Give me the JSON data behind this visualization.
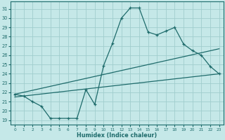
{
  "xlabel": "Humidex (Indice chaleur)",
  "bg_color": "#c5e8e8",
  "grid_color": "#a0cdcd",
  "line_color": "#1e6b6b",
  "xlim": [
    -0.5,
    23.5
  ],
  "ylim": [
    18.5,
    31.8
  ],
  "xticks": [
    0,
    1,
    2,
    3,
    4,
    5,
    6,
    7,
    8,
    9,
    10,
    11,
    12,
    13,
    14,
    15,
    16,
    17,
    18,
    19,
    20,
    21,
    22,
    23
  ],
  "yticks": [
    19,
    20,
    21,
    22,
    23,
    24,
    25,
    26,
    27,
    28,
    29,
    30,
    31
  ],
  "line1_x": [
    0,
    1,
    2,
    3,
    4,
    5,
    6,
    7,
    8,
    9,
    10,
    11,
    12,
    13,
    14,
    15,
    16,
    17,
    18,
    19,
    20,
    21,
    22,
    23
  ],
  "line1_y": [
    21.8,
    21.6,
    21.0,
    20.5,
    19.2,
    19.2,
    19.2,
    19.2,
    22.3,
    20.7,
    24.9,
    27.3,
    30.0,
    31.1,
    31.1,
    28.5,
    28.2,
    28.6,
    29.0,
    27.2,
    26.5,
    26.0,
    24.8,
    24.0
  ],
  "line2_x": [
    0,
    23
  ],
  "line2_y": [
    21.5,
    24.0
  ],
  "line3_x": [
    0,
    23
  ],
  "line3_y": [
    21.8,
    26.7
  ]
}
